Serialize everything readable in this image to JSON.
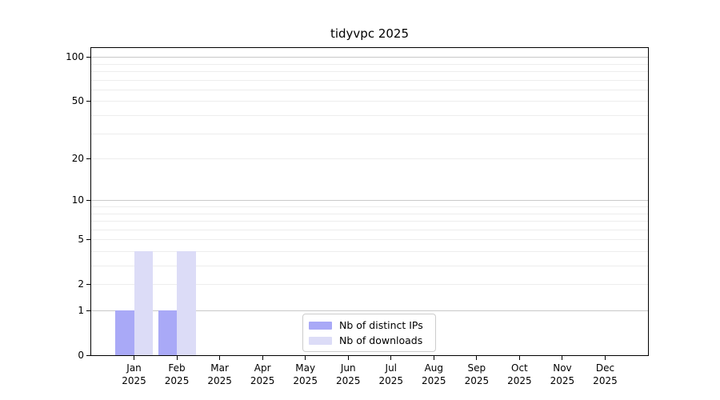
{
  "chart_data": {
    "type": "bar",
    "title": "tidyvpc 2025",
    "categories": [
      {
        "month": "Jan",
        "year": "2025"
      },
      {
        "month": "Feb",
        "year": "2025"
      },
      {
        "month": "Mar",
        "year": "2025"
      },
      {
        "month": "Apr",
        "year": "2025"
      },
      {
        "month": "May",
        "year": "2025"
      },
      {
        "month": "Jun",
        "year": "2025"
      },
      {
        "month": "Jul",
        "year": "2025"
      },
      {
        "month": "Aug",
        "year": "2025"
      },
      {
        "month": "Sep",
        "year": "2025"
      },
      {
        "month": "Oct",
        "year": "2025"
      },
      {
        "month": "Nov",
        "year": "2025"
      },
      {
        "month": "Dec",
        "year": "2025"
      }
    ],
    "series": [
      {
        "name": "Nb of distinct IPs",
        "color": "#a9a9f7",
        "values": [
          1,
          1,
          0,
          0,
          0,
          0,
          0,
          0,
          0,
          0,
          0,
          0
        ]
      },
      {
        "name": "Nb of downloads",
        "color": "#dcdcf7",
        "values": [
          4,
          4,
          0,
          0,
          0,
          0,
          0,
          0,
          0,
          0,
          0,
          0
        ]
      }
    ],
    "yscale": "log1p",
    "ylim": [
      0,
      115
    ],
    "ytick_labels": [
      100,
      50,
      20,
      10,
      5,
      2,
      1,
      0
    ],
    "gridlines": {
      "major": [
        1,
        10,
        100
      ],
      "minor": [
        2,
        3,
        4,
        5,
        6,
        7,
        8,
        9,
        20,
        30,
        40,
        50,
        60,
        70,
        80,
        90
      ]
    },
    "legend_position": "lower center inside",
    "colors": {
      "major_grid": "#c9c9c9",
      "minor_grid": "#ededed",
      "axis": "#000000",
      "legend_border": "#cccccc",
      "background": "#ffffff"
    }
  }
}
